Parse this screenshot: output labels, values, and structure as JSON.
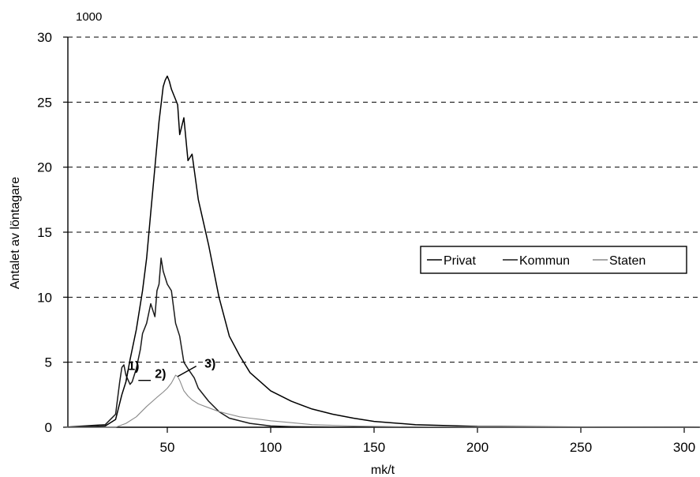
{
  "chart_data": {
    "type": "line",
    "title": "",
    "y_unit_label": "1000",
    "xlabel": "mk/t",
    "ylabel": "Antalet av löntagare",
    "xlim": [
      0,
      310
    ],
    "ylim": [
      0,
      30
    ],
    "x_ticks": [
      50,
      100,
      150,
      200,
      250,
      300
    ],
    "y_ticks": [
      0,
      5,
      10,
      15,
      20,
      25,
      30
    ],
    "grid": "horizontal-dashed",
    "legend_position": "center-right",
    "series": [
      {
        "name": "Privat",
        "color": "#000000",
        "x": [
          0,
          20,
          25,
          28,
          30,
          32,
          35,
          38,
          40,
          42,
          44,
          46,
          48,
          49,
          50,
          51,
          52,
          54,
          55,
          56,
          58,
          60,
          62,
          65,
          70,
          75,
          80,
          85,
          90,
          100,
          110,
          120,
          130,
          140,
          150,
          170,
          200,
          250,
          300,
          310
        ],
        "y": [
          0,
          0.1,
          0.6,
          2.5,
          3.5,
          5.2,
          7.5,
          10.5,
          13,
          16.5,
          20,
          23.5,
          26.2,
          26.7,
          27,
          26.6,
          26,
          25.2,
          24.8,
          22.5,
          23.8,
          20.5,
          21,
          17.5,
          14,
          10,
          7,
          5.5,
          4.2,
          2.8,
          2,
          1.4,
          1,
          0.7,
          0.45,
          0.2,
          0.06,
          0.02,
          0.01,
          0
        ]
      },
      {
        "name": "Kommun",
        "color": "#1a1a1a",
        "x": [
          0,
          20,
          25,
          27,
          28,
          29,
          30,
          32,
          33,
          35,
          37,
          38,
          40,
          42,
          44,
          45,
          46,
          47,
          48,
          49,
          50,
          52,
          54,
          56,
          58,
          60,
          63,
          65,
          70,
          75,
          80,
          90,
          100,
          110,
          130,
          150,
          200,
          310
        ],
        "y": [
          0,
          0.2,
          1,
          3.5,
          4.6,
          4.8,
          4,
          3.3,
          3.5,
          4.5,
          6,
          7.2,
          8,
          9.5,
          8.5,
          10.5,
          11,
          13,
          12,
          11.5,
          11,
          10.5,
          8,
          7,
          5,
          4.5,
          3.8,
          3,
          2,
          1.2,
          0.7,
          0.3,
          0.1,
          0.05,
          0.02,
          0.01,
          0,
          0
        ]
      },
      {
        "name": "Staten",
        "color": "#8a8a8a",
        "x": [
          0,
          25,
          30,
          35,
          40,
          45,
          48,
          50,
          52,
          54,
          55,
          56,
          58,
          60,
          62,
          65,
          70,
          75,
          80,
          85,
          90,
          95,
          100,
          110,
          120,
          140,
          160,
          200,
          310
        ],
        "y": [
          0,
          0,
          0.3,
          0.8,
          1.6,
          2.3,
          2.7,
          3,
          3.4,
          4,
          3.9,
          3.6,
          2.8,
          2.4,
          2.1,
          1.8,
          1.5,
          1.2,
          1,
          0.8,
          0.7,
          0.6,
          0.5,
          0.35,
          0.2,
          0.1,
          0.05,
          0.02,
          0
        ]
      }
    ],
    "annotations": [
      {
        "text": "1)",
        "x": 31,
        "y": 4.4
      },
      {
        "text": "2)",
        "x": 44,
        "y": 3.8
      },
      {
        "text": "3)",
        "x": 68,
        "y": 4.6
      }
    ]
  }
}
